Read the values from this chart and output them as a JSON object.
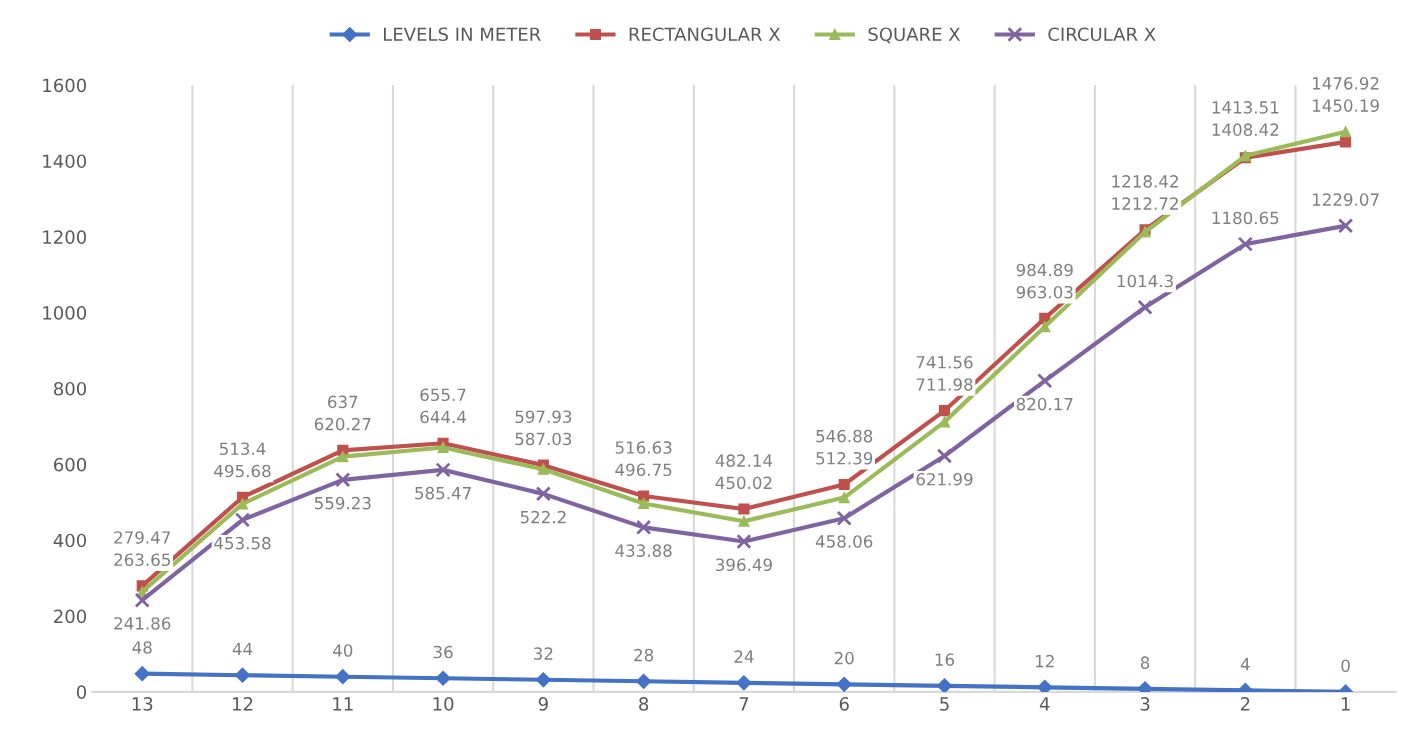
{
  "chart_data": {
    "type": "line",
    "categories": [
      "13",
      "12",
      "11",
      "10",
      "9",
      "8",
      "7",
      "6",
      "5",
      "4",
      "3",
      "2",
      "1"
    ],
    "series": [
      {
        "name": "LEVELS IN METER",
        "color": "#4472c4",
        "marker": "diamond",
        "values": [
          48,
          44,
          40,
          36,
          32,
          28,
          24,
          20,
          16,
          12,
          8,
          4,
          0
        ]
      },
      {
        "name": "RECTANGULAR X",
        "color": "#c0504d",
        "marker": "square",
        "values": [
          279.47,
          513.4,
          637,
          655.7,
          597.93,
          516.63,
          482.14,
          546.88,
          741.56,
          984.89,
          1218.42,
          1408.42,
          1450.19
        ]
      },
      {
        "name": "SQUARE X",
        "color": "#9bbb59",
        "marker": "triangle",
        "values": [
          263.65,
          495.68,
          620.27,
          644.4,
          587.03,
          496.75,
          450.02,
          512.39,
          711.98,
          963.03,
          1212.72,
          1413.51,
          1476.92
        ]
      },
      {
        "name": "CIRCULAR X",
        "color": "#8064a2",
        "marker": "cross",
        "values": [
          241.86,
          453.58,
          559.23,
          585.47,
          522.2,
          433.88,
          396.49,
          458.06,
          621.99,
          820.17,
          1014.3,
          1180.65,
          1229.07
        ]
      }
    ],
    "ylim": [
      0,
      1600
    ],
    "yticks": [
      0,
      200,
      400,
      600,
      800,
      1000,
      1200,
      1400,
      1600
    ],
    "grid": "x",
    "legend": "top",
    "data_labels": true
  }
}
